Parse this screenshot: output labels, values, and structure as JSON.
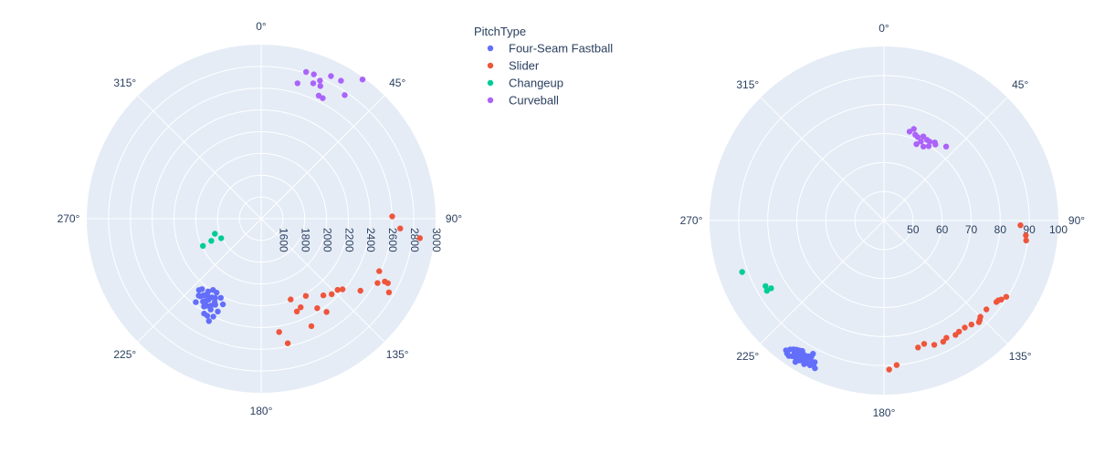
{
  "legend": {
    "title": "PitchType",
    "items": [
      {
        "label": "Four-Seam Fastball",
        "color": "#636efa"
      },
      {
        "label": "Slider",
        "color": "#EF553B"
      },
      {
        "label": "Changeup",
        "color": "#00cc96"
      },
      {
        "label": "Curveball",
        "color": "#ab63fa"
      }
    ]
  },
  "chart_data": [
    {
      "type": "scatter",
      "coordinate_system": "polar",
      "angular_unit": "degrees",
      "angular_direction": "clockwise",
      "angular_zero": "top",
      "angular_ticks": [
        "0°",
        "45°",
        "90°",
        "135°",
        "180°",
        "225°",
        "270°",
        "315°"
      ],
      "radial_range": [
        1400,
        3000
      ],
      "radial_ticks": [
        "1600",
        "1800",
        "2000",
        "2200",
        "2400",
        "2600",
        "2800",
        "3000"
      ],
      "grid": true,
      "series": [
        {
          "name": "Four-Seam Fastball",
          "color": "#636efa",
          "theta_r": [
            [
              204,
              2262
            ],
            [
              207,
              2216
            ],
            [
              208,
              2297
            ],
            [
              210,
              2324
            ],
            [
              209,
              2355
            ],
            [
              212,
              2252
            ],
            [
              213,
              2288
            ],
            [
              214,
              2311
            ],
            [
              206,
              2401
            ],
            [
              209,
              2420
            ],
            [
              215,
              2262
            ],
            [
              217,
              2283
            ],
            [
              211,
              2193
            ],
            [
              219,
              2310
            ],
            [
              216,
              2226
            ],
            [
              213,
              2363
            ],
            [
              218,
              2374
            ],
            [
              205,
              2341
            ],
            [
              210,
              2242
            ],
            [
              221,
              2269
            ],
            [
              215,
              2331
            ],
            [
              207,
              2456
            ],
            [
              212,
              2343
            ],
            [
              209,
              2279
            ],
            [
              220,
              2245
            ],
            [
              216,
              2266
            ],
            [
              214,
              2190
            ],
            [
              211,
              2417
            ],
            [
              218,
              2305
            ]
          ]
        },
        {
          "name": "Slider",
          "color": "#EF553B",
          "theta_r": [
            [
              89,
              2602
            ],
            [
              94,
              2679
            ],
            [
              97,
              2867
            ],
            [
              114,
              2586
            ],
            [
              117,
              2673
            ],
            [
              117,
              2704
            ],
            [
              120,
              2753
            ],
            [
              126,
              2526
            ],
            [
              133,
              2359
            ],
            [
              137,
              2348
            ],
            [
              141,
              2306
            ],
            [
              145,
              2446
            ],
            [
              150,
              2219
            ],
            [
              156,
              2291
            ],
            [
              159,
              2313
            ],
            [
              160,
              2190
            ],
            [
              171,
              2454
            ],
            [
              168,
              2571
            ],
            [
              155,
              2490
            ],
            [
              148,
              2370
            ],
            [
              131,
              2389
            ],
            [
              119,
              2620
            ]
          ]
        },
        {
          "name": "Changeup",
          "color": "#00cc96",
          "theta_r": [
            [
              246,
              1901
            ],
            [
              245,
              1990
            ],
            [
              252,
              1847
            ],
            [
              244,
              1808
            ]
          ]
        },
        {
          "name": "Curveball",
          "color": "#ab63fa",
          "theta_r": [
            [
              17,
              2810
            ],
            [
              20,
              2812
            ],
            [
              23,
              2780
            ],
            [
              24,
              2735
            ],
            [
              25,
              2648
            ],
            [
              27,
              2644
            ],
            [
              30,
              2864
            ],
            [
              34,
              2771
            ],
            [
              36,
              2982
            ],
            [
              15,
              2689
            ],
            [
              21,
              2733
            ],
            [
              26,
              2859
            ]
          ]
        }
      ]
    },
    {
      "type": "scatter",
      "coordinate_system": "polar",
      "angular_unit": "degrees",
      "angular_direction": "clockwise",
      "angular_zero": "top",
      "angular_ticks": [
        "0°",
        "45°",
        "90°",
        "135°",
        "180°",
        "225°",
        "270°",
        "315°"
      ],
      "radial_range": [
        40,
        100
      ],
      "radial_ticks": [
        "50",
        "60",
        "70",
        "80",
        "90",
        "100"
      ],
      "grid": true,
      "series": [
        {
          "name": "Four-Seam Fastball",
          "color": "#636efa",
          "theta_r": [
            [
              209,
              96.6
            ],
            [
              210,
              94.8
            ],
            [
              211,
              93.8
            ],
            [
              212,
              93.0
            ],
            [
              207,
              95.1
            ],
            [
              213,
              96.1
            ],
            [
              214,
              95.0
            ],
            [
              208,
              93.2
            ],
            [
              206,
              94.3
            ],
            [
              215,
              94.2
            ],
            [
              209,
              93.5
            ],
            [
              212,
              97.5
            ],
            [
              205,
              96.2
            ],
            [
              216,
              96.7
            ],
            [
              210,
              95.8
            ],
            [
              211,
              94.1
            ],
            [
              213,
              95.0
            ],
            [
              207,
              94.6
            ],
            [
              214,
              93.7
            ],
            [
              217,
              96.0
            ],
            [
              208,
              92.0
            ],
            [
              212,
              95.5
            ],
            [
              209,
              94.0
            ],
            [
              215,
              97.0
            ],
            [
              206,
              95.3
            ],
            [
              213,
              93.4
            ],
            [
              211,
              96.3
            ],
            [
              210,
              93.9
            ],
            [
              208,
              95.7
            ],
            [
              214,
              96.4
            ],
            [
              212,
              94.4
            ],
            [
              216,
              94.9
            ],
            [
              207,
              96.0
            ],
            [
              209,
              95.3
            ],
            [
              211,
              95.1
            ]
          ]
        },
        {
          "name": "Slider",
          "color": "#EF553B",
          "theta_r": [
            [
              92,
              87.0
            ],
            [
              96,
              89.1
            ],
            [
              98,
              89.4
            ],
            [
              122,
              89.6
            ],
            [
              124,
              88.7
            ],
            [
              125,
              88.0
            ],
            [
              126,
              87.8
            ],
            [
              135,
              86.9
            ],
            [
              137,
              87.9
            ],
            [
              140,
              86.8
            ],
            [
              143,
              86.2
            ],
            [
              146,
              86.2
            ],
            [
              152,
              85.8
            ],
            [
              158,
              86.2
            ],
            [
              162,
              84.7
            ],
            [
              165,
              85.3
            ],
            [
              178,
              91.4
            ],
            [
              175,
              90.0
            ],
            [
              154,
              86.5
            ],
            [
              148,
              86.5
            ],
            [
              131,
              86.7
            ],
            [
              136,
              87.5
            ]
          ]
        },
        {
          "name": "Changeup",
          "color": "#00cc96",
          "theta_r": [
            [
              239,
              85.3
            ],
            [
              239,
              87.0
            ],
            [
              241,
              86.6
            ],
            [
              250,
              91.9
            ]
          ]
        },
        {
          "name": "Curveball",
          "color": "#ab63fa",
          "theta_r": [
            [
              16,
              71.9
            ],
            [
              20,
              71.5
            ],
            [
              22,
              71.0
            ],
            [
              25,
              72.0
            ],
            [
              28,
              71.5
            ],
            [
              30,
              71.4
            ],
            [
              33,
              72.1
            ],
            [
              34,
              71.6
            ],
            [
              40,
              73.3
            ],
            [
              25,
              70.1
            ],
            [
              23,
              68.6
            ],
            [
              28,
              68.9
            ],
            [
              31,
              69.9
            ],
            [
              18,
              73.2
            ]
          ]
        }
      ]
    }
  ]
}
